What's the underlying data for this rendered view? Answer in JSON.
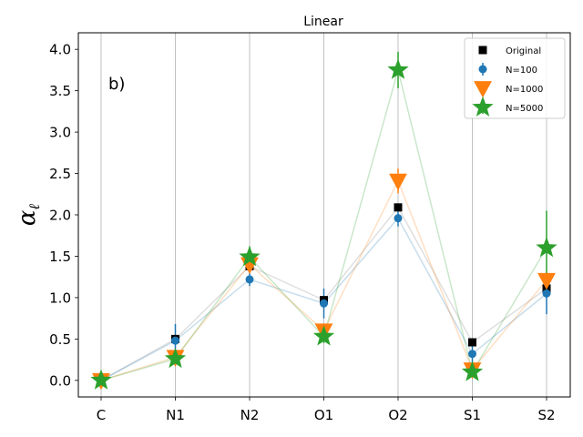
{
  "chart_data": {
    "type": "line",
    "title": "Linear",
    "panel_label": "b)",
    "xlabel": "",
    "ylabel": "α_ℓ",
    "categories": [
      "C",
      "N1",
      "N2",
      "O1",
      "O2",
      "S1",
      "S2"
    ],
    "ylim": [
      -0.2,
      4.2
    ],
    "yticks": [
      0.0,
      0.5,
      1.0,
      1.5,
      2.0,
      2.5,
      3.0,
      3.5,
      4.0
    ],
    "ytick_labels": [
      "0.0",
      "0.5",
      "1.0",
      "1.5",
      "2.0",
      "2.5",
      "3.0",
      "3.5",
      "4.0"
    ],
    "grid": "vertical",
    "legend_position": "top-right",
    "series": [
      {
        "name": "Original",
        "marker": "square",
        "color": "#000000",
        "line_color": "#808080",
        "values": [
          0.0,
          0.5,
          1.38,
          0.97,
          2.09,
          0.46,
          1.11
        ],
        "errors": [
          0,
          0,
          0,
          0,
          0,
          0,
          0
        ]
      },
      {
        "name": "N=100",
        "marker": "circle",
        "color": "#1f77b4",
        "values": [
          0.0,
          0.48,
          1.22,
          0.93,
          1.96,
          0.32,
          1.05
        ],
        "errors": [
          0.01,
          0.2,
          0.08,
          0.18,
          0.1,
          0.12,
          0.25
        ]
      },
      {
        "name": "N=1000",
        "marker": "triangle-down",
        "color": "#ff7f0e",
        "values": [
          0.0,
          0.28,
          1.4,
          0.6,
          2.41,
          0.13,
          1.21
        ],
        "errors": [
          0.01,
          0.05,
          0.07,
          0.06,
          0.15,
          0.06,
          0.1
        ]
      },
      {
        "name": "N=5000",
        "marker": "star",
        "color": "#2ca02c",
        "values": [
          0.0,
          0.26,
          1.49,
          0.53,
          3.75,
          0.1,
          1.6
        ],
        "errors": [
          0.01,
          0.05,
          0.13,
          0.08,
          0.22,
          0.05,
          0.45
        ]
      }
    ]
  }
}
